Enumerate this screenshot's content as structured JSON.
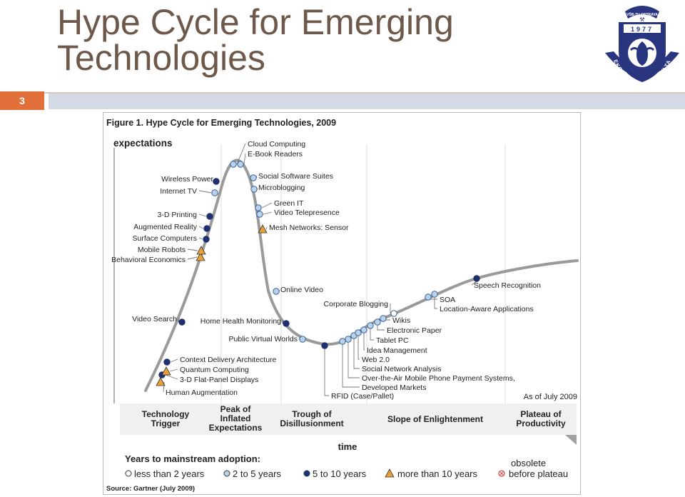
{
  "slide": {
    "title_line1": "Hype Cycle for Emerging",
    "title_line2": "Technologies",
    "number": "3"
  },
  "logo": {
    "ring_text": "EKONOMICKÁ FAKULTA",
    "top_text": "VŠB-TU OSTRAVA",
    "year": "1977"
  },
  "figure": {
    "title": "Figure 1. Hype Cycle for Emerging Technologies, 2009",
    "y_label": "expectations",
    "x_label": "time",
    "as_of": "As of July 2009",
    "source": "Source: Gartner (July 2009)",
    "phases": [
      [
        "Technology",
        "Trigger"
      ],
      [
        "Peak of",
        "Inflated",
        "Expectations"
      ],
      [
        "Trough of",
        "Disillusionment"
      ],
      [
        "Slope of Enlightenment"
      ],
      [
        "Plateau of",
        "Productivity"
      ]
    ],
    "legend": {
      "title": "Years to mainstream adoption:",
      "items": [
        "less than 2 years",
        "2 to 5 years",
        "5 to 10 years",
        "more than 10 years"
      ],
      "obsolete_1": "obsolete",
      "obsolete_2": "before plateau"
    },
    "technologies": [
      {
        "name": "Human Augmentation",
        "marker": "triangle"
      },
      {
        "name": "3-D Flat-Panel Displays",
        "marker": "dark"
      },
      {
        "name": "Quantum Computing",
        "marker": "triangle"
      },
      {
        "name": "Context Delivery Architecture",
        "marker": "dark"
      },
      {
        "name": "Video Search",
        "marker": "dark"
      },
      {
        "name": "Behavioral Economics",
        "marker": "triangle"
      },
      {
        "name": "Mobile Robots",
        "marker": "triangle"
      },
      {
        "name": "Surface Computers",
        "marker": "dark"
      },
      {
        "name": "Augmented Reality",
        "marker": "dark"
      },
      {
        "name": "3-D Printing",
        "marker": "dark"
      },
      {
        "name": "Internet TV",
        "marker": "light"
      },
      {
        "name": "Wireless Power",
        "marker": "dark"
      },
      {
        "name": "Cloud Computing",
        "marker": "light"
      },
      {
        "name": "E-Book Readers",
        "marker": "light"
      },
      {
        "name": "Social Software Suites",
        "marker": "light"
      },
      {
        "name": "Microblogging",
        "marker": "light"
      },
      {
        "name": "Green IT",
        "marker": "light"
      },
      {
        "name": "Video Telepresence",
        "marker": "light"
      },
      {
        "name": "Mesh Networks: Sensor",
        "marker": "triangle"
      },
      {
        "name": "Online Video",
        "marker": "light"
      },
      {
        "name": "Home Health Monitoring",
        "marker": "dark"
      },
      {
        "name": "Public Virtual Worlds",
        "marker": "light"
      },
      {
        "name": "RFID (Case/Pallet)",
        "marker": "dark"
      },
      {
        "name": "Developed Markets",
        "marker": "light"
      },
      {
        "name": "Over-the-Air Mobile Phone Payment Systems,",
        "marker": "light"
      },
      {
        "name": "Social Network Analysis",
        "marker": "light"
      },
      {
        "name": "Web 2.0",
        "marker": "light"
      },
      {
        "name": "Idea Management",
        "marker": "light"
      },
      {
        "name": "Tablet PC",
        "marker": "light"
      },
      {
        "name": "Electronic Paper",
        "marker": "light"
      },
      {
        "name": "Wikis",
        "marker": "light"
      },
      {
        "name": "Corporate Blogging",
        "marker": "white"
      },
      {
        "name": "SOA",
        "marker": "light"
      },
      {
        "name": "Location-Aware Applications",
        "marker": "light"
      },
      {
        "name": "Speech Recognition",
        "marker": "dark"
      }
    ],
    "colors": {
      "dark": "#1f3070",
      "light": "#b8d4ea",
      "triangle": "#e8a13a",
      "curve": "#9a9a9a",
      "obsolete": "#d9534f"
    }
  }
}
